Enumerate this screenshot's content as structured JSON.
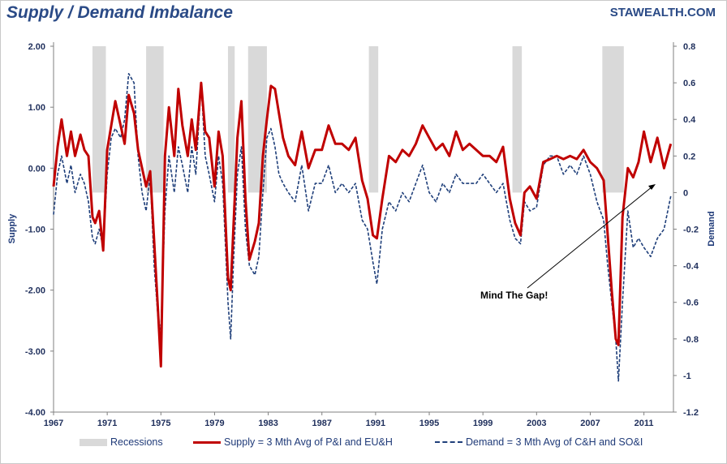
{
  "header": {
    "title": "Supply / Demand Imbalance",
    "brand": "STAWEALTH.COM"
  },
  "chart_data": {
    "type": "line",
    "title": "Supply / Demand Imbalance",
    "x_ticks": [
      "1967",
      "1971",
      "1975",
      "1979",
      "1983",
      "1987",
      "1991",
      "1995",
      "1999",
      "2003",
      "2007",
      "2011"
    ],
    "xlim": [
      1967,
      2013.2
    ],
    "y_left": {
      "label": "Supply",
      "lim": [
        -4,
        2
      ],
      "ticks": [
        "2.00",
        "1.00",
        "0.00",
        "-1.00",
        "-2.00",
        "-3.00",
        "-4.00"
      ]
    },
    "y_right": {
      "label": "Demand",
      "lim": [
        -1.2,
        0.8
      ],
      "ticks": [
        "0.8",
        "0.6",
        "0.4",
        "0.2",
        "0",
        "-0.2",
        "-0.4",
        "-0.6",
        "-0.8",
        "-1",
        "-1.2"
      ]
    },
    "recessions": [
      [
        1969.9,
        1970.9
      ],
      [
        1973.9,
        1975.2
      ],
      [
        1980.0,
        1980.5
      ],
      [
        1981.5,
        1982.9
      ],
      [
        1990.5,
        1991.2
      ],
      [
        2001.2,
        2001.9
      ],
      [
        2007.9,
        2009.5
      ]
    ],
    "series": [
      {
        "name": "Supply = 3 Mth Avg of P&I and EU&H",
        "axis": "left",
        "color": "#c00000",
        "x": [
          1967.0,
          1967.3,
          1967.6,
          1968.0,
          1968.3,
          1968.6,
          1969.0,
          1969.3,
          1969.6,
          1969.9,
          1970.1,
          1970.4,
          1970.7,
          1971.0,
          1971.3,
          1971.6,
          1972.0,
          1972.3,
          1972.6,
          1973.0,
          1973.3,
          1973.6,
          1973.9,
          1974.2,
          1974.5,
          1974.8,
          1975.0,
          1975.3,
          1975.6,
          1976.0,
          1976.3,
          1976.6,
          1977.0,
          1977.3,
          1977.6,
          1978.0,
          1978.3,
          1978.6,
          1979.0,
          1979.3,
          1979.6,
          1980.0,
          1980.2,
          1980.4,
          1980.7,
          1981.0,
          1981.3,
          1981.6,
          1982.0,
          1982.3,
          1982.6,
          1982.9,
          1983.2,
          1983.5,
          1983.8,
          1984.1,
          1984.5,
          1985.0,
          1985.5,
          1986.0,
          1986.5,
          1987.0,
          1987.5,
          1988.0,
          1988.5,
          1989.0,
          1989.5,
          1990.0,
          1990.4,
          1990.8,
          1991.1,
          1991.5,
          1992.0,
          1992.5,
          1993.0,
          1993.5,
          1994.0,
          1994.5,
          1995.0,
          1995.5,
          1996.0,
          1996.5,
          1997.0,
          1997.5,
          1998.0,
          1998.5,
          1999.0,
          1999.5,
          2000.0,
          2000.5,
          2001.0,
          2001.4,
          2001.8,
          2002.1,
          2002.5,
          2003.0,
          2003.5,
          2004.0,
          2004.5,
          2005.0,
          2005.5,
          2006.0,
          2006.5,
          2007.0,
          2007.5,
          2008.0,
          2008.3,
          2008.6,
          2008.9,
          2009.1,
          2009.4,
          2009.8,
          2010.2,
          2010.6,
          2011.0,
          2011.5,
          2012.0,
          2012.5,
          2013.0
        ],
        "y": [
          -0.3,
          0.35,
          0.8,
          0.2,
          0.6,
          0.2,
          0.55,
          0.3,
          0.2,
          -0.8,
          -0.9,
          -0.7,
          -1.35,
          0.3,
          0.7,
          1.1,
          0.7,
          0.4,
          1.2,
          0.9,
          0.3,
          0.0,
          -0.3,
          -0.05,
          -1.2,
          -2.4,
          -3.25,
          0.2,
          1.0,
          0.2,
          1.3,
          0.7,
          0.2,
          0.8,
          0.3,
          1.4,
          0.6,
          0.5,
          -0.3,
          0.6,
          0.2,
          -1.8,
          -2.0,
          -1.0,
          0.5,
          1.1,
          -0.5,
          -1.5,
          -1.2,
          -0.9,
          0.2,
          0.8,
          1.35,
          1.3,
          0.9,
          0.5,
          0.2,
          0.05,
          0.6,
          0.0,
          0.3,
          0.3,
          0.7,
          0.4,
          0.4,
          0.3,
          0.5,
          -0.2,
          -0.5,
          -1.1,
          -1.15,
          -0.5,
          0.2,
          0.1,
          0.3,
          0.2,
          0.4,
          0.7,
          0.5,
          0.3,
          0.4,
          0.2,
          0.6,
          0.3,
          0.4,
          0.3,
          0.2,
          0.2,
          0.1,
          0.35,
          -0.5,
          -0.9,
          -1.1,
          -0.4,
          -0.3,
          -0.5,
          0.1,
          0.15,
          0.2,
          0.15,
          0.2,
          0.15,
          0.3,
          0.1,
          0.0,
          -0.2,
          -1.1,
          -2.0,
          -2.8,
          -2.9,
          -0.8,
          0.0,
          -0.15,
          0.1,
          0.6,
          0.1,
          0.5,
          0.0,
          0.4
        ]
      },
      {
        "name": "Demand = 3 Mth Avg of C&H and SO&I",
        "axis": "right",
        "color": "#1f3f7a",
        "x": [
          1967.0,
          1967.3,
          1967.6,
          1968.0,
          1968.3,
          1968.6,
          1969.0,
          1969.3,
          1969.6,
          1969.9,
          1970.1,
          1970.4,
          1970.7,
          1971.0,
          1971.3,
          1971.6,
          1972.0,
          1972.3,
          1972.6,
          1973.0,
          1973.3,
          1973.6,
          1973.9,
          1974.2,
          1974.5,
          1974.8,
          1975.0,
          1975.3,
          1975.6,
          1976.0,
          1976.3,
          1976.6,
          1977.0,
          1977.3,
          1977.6,
          1978.0,
          1978.3,
          1978.6,
          1979.0,
          1979.3,
          1979.6,
          1980.0,
          1980.2,
          1980.4,
          1980.7,
          1981.0,
          1981.3,
          1981.6,
          1982.0,
          1982.3,
          1982.6,
          1982.9,
          1983.2,
          1983.5,
          1983.8,
          1984.1,
          1984.5,
          1985.0,
          1985.5,
          1986.0,
          1986.5,
          1987.0,
          1987.5,
          1988.0,
          1988.5,
          1989.0,
          1989.5,
          1990.0,
          1990.4,
          1990.8,
          1991.1,
          1991.5,
          1992.0,
          1992.5,
          1993.0,
          1993.5,
          1994.0,
          1994.5,
          1995.0,
          1995.5,
          1996.0,
          1996.5,
          1997.0,
          1997.5,
          1998.0,
          1998.5,
          1999.0,
          1999.5,
          2000.0,
          2000.5,
          2001.0,
          2001.4,
          2001.8,
          2002.1,
          2002.5,
          2003.0,
          2003.5,
          2004.0,
          2004.5,
          2005.0,
          2005.5,
          2006.0,
          2006.5,
          2007.0,
          2007.5,
          2008.0,
          2008.3,
          2008.6,
          2008.9,
          2009.1,
          2009.4,
          2009.8,
          2010.2,
          2010.6,
          2011.0,
          2011.5,
          2012.0,
          2012.5,
          2013.0
        ],
        "y": [
          -0.12,
          0.1,
          0.2,
          0.05,
          0.15,
          0.0,
          0.1,
          0.05,
          -0.05,
          -0.25,
          -0.28,
          -0.2,
          -0.3,
          0.1,
          0.3,
          0.35,
          0.3,
          0.4,
          0.65,
          0.6,
          0.2,
          0.0,
          -0.1,
          0.1,
          -0.4,
          -0.7,
          -0.75,
          -0.1,
          0.2,
          0.0,
          0.25,
          0.15,
          0.0,
          0.25,
          0.1,
          0.6,
          0.2,
          0.1,
          -0.05,
          0.2,
          0.05,
          -0.6,
          -0.8,
          -0.4,
          0.1,
          0.25,
          -0.2,
          -0.4,
          -0.45,
          -0.35,
          0.0,
          0.3,
          0.35,
          0.25,
          0.1,
          0.05,
          0.0,
          -0.05,
          0.15,
          -0.1,
          0.05,
          0.05,
          0.15,
          0.0,
          0.05,
          0.0,
          0.05,
          -0.15,
          -0.2,
          -0.38,
          -0.5,
          -0.2,
          -0.05,
          -0.1,
          0.0,
          -0.05,
          0.05,
          0.15,
          0.0,
          -0.05,
          0.05,
          0.0,
          0.1,
          0.05,
          0.05,
          0.05,
          0.1,
          0.05,
          0.0,
          0.05,
          -0.15,
          -0.25,
          -0.28,
          -0.05,
          -0.1,
          -0.08,
          0.15,
          0.2,
          0.2,
          0.1,
          0.15,
          0.1,
          0.2,
          0.1,
          -0.05,
          -0.15,
          -0.4,
          -0.6,
          -0.8,
          -1.03,
          -0.6,
          -0.1,
          -0.3,
          -0.25,
          -0.3,
          -0.35,
          -0.25,
          -0.2,
          -0.02
        ]
      }
    ],
    "annotation": {
      "text": "Mind The Gap!"
    },
    "legend": [
      {
        "label": "Recessions",
        "style": "band"
      },
      {
        "label": "Supply = 3 Mth Avg of P&I and EU&H",
        "style": "solid"
      },
      {
        "label": "Demand = 3 Mth Avg of C&H and SO&I",
        "style": "dashed"
      }
    ]
  }
}
